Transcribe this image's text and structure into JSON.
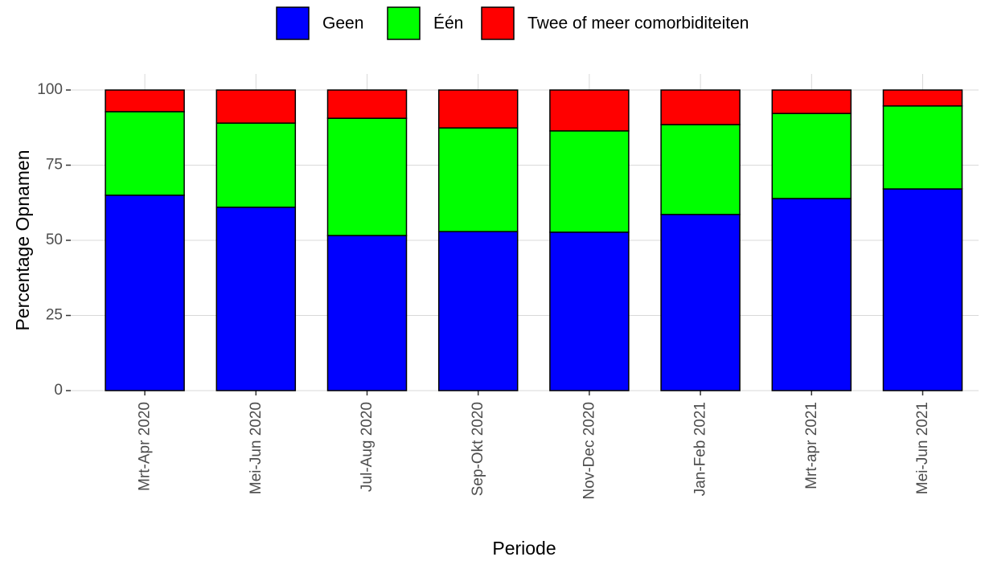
{
  "chart_data": {
    "type": "stacked-bar",
    "x_label": "Periode",
    "y_label": "Percentage Opnamen",
    "categories": [
      "Mrt-Apr 2020",
      "Mei-Jun 2020",
      "Jul-Aug 2020",
      "Sep-Okt 2020",
      "Nov-Dec 2020",
      "Jan-Feb 2021",
      "Mrt-apr 2021",
      "Mei-Jun 2021"
    ],
    "series": [
      {
        "name": "Geen",
        "color": "#0000ff",
        "values": [
          65,
          61,
          51.6,
          52.9,
          52.7,
          58.6,
          63.9,
          67.1
        ]
      },
      {
        "name": "Één",
        "color": "#00ff00",
        "values": [
          27.8,
          28,
          39,
          34.5,
          33.7,
          29.9,
          28.3,
          27.6
        ]
      },
      {
        "name": "Twee of meer comorbiditeiten",
        "color": "#ff0000",
        "values": [
          7.2,
          11,
          9.4,
          12.6,
          13.6,
          11.5,
          7.8,
          5.3
        ]
      }
    ],
    "ylim": [
      0,
      100
    ],
    "yticks": [
      0,
      25,
      50,
      75,
      100
    ],
    "grid": true
  }
}
